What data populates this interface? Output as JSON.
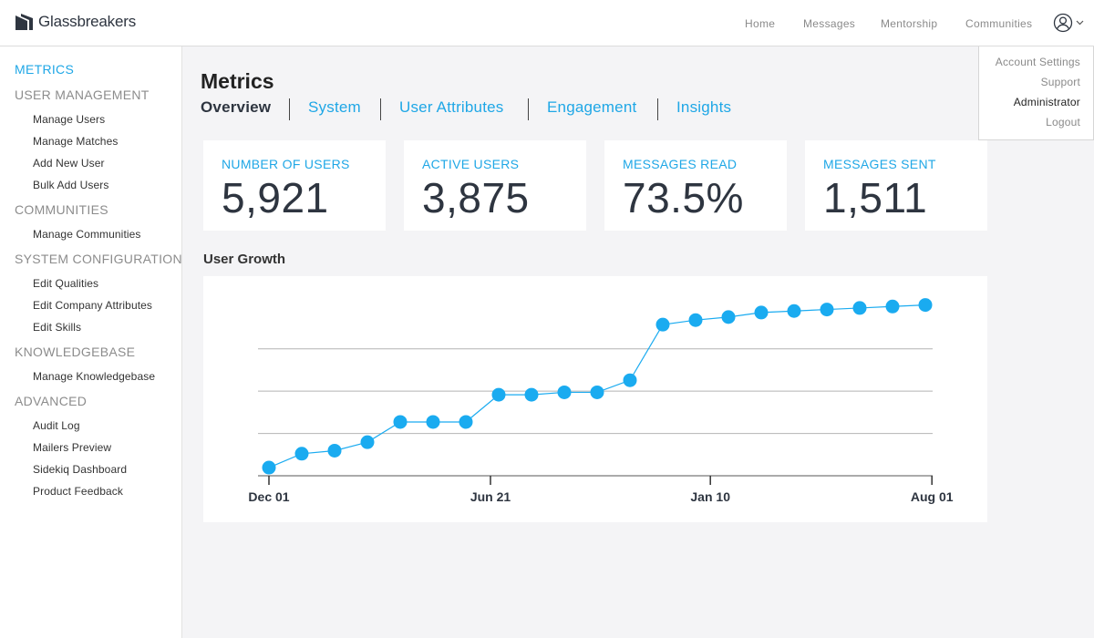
{
  "header": {
    "brand": "Glassbreakers",
    "nav": [
      "Home",
      "Messages",
      "Mentorship",
      "Communities"
    ]
  },
  "user_dropdown": {
    "items": [
      "Account Settings",
      "Support",
      "Administrator",
      "Logout"
    ],
    "active": "Administrator"
  },
  "sidebar": {
    "sections": [
      {
        "label": "METRICS",
        "active": true,
        "items": []
      },
      {
        "label": "USER MANAGEMENT",
        "active": false,
        "items": [
          "Manage Users",
          "Manage Matches",
          "Add New User",
          "Bulk Add Users"
        ]
      },
      {
        "label": "COMMUNITIES",
        "active": false,
        "items": [
          "Manage Communities"
        ]
      },
      {
        "label": "SYSTEM CONFIGURATION",
        "active": false,
        "items": [
          "Edit Qualities",
          "Edit Company Attributes",
          "Edit Skills"
        ]
      },
      {
        "label": "KNOWLEDGEBASE",
        "active": false,
        "items": [
          "Manage Knowledgebase"
        ]
      },
      {
        "label": "ADVANCED",
        "active": false,
        "items": [
          "Audit Log",
          "Mailers Preview",
          "Sidekiq Dashboard",
          "Product Feedback"
        ]
      }
    ]
  },
  "main": {
    "title": "Metrics",
    "tabs": [
      "Overview",
      "System",
      "User Attributes",
      "Engagement",
      "Insights"
    ],
    "active_tab": "Overview",
    "stats": [
      {
        "label": "NUMBER OF USERS",
        "value": "5,921"
      },
      {
        "label": "ACTIVE USERS",
        "value": "3,875"
      },
      {
        "label": "MESSAGES READ",
        "value": "73.5%"
      },
      {
        "label": "MESSAGES SENT",
        "value": "1,511"
      }
    ],
    "chart_title": "User Growth"
  },
  "colors": {
    "accent": "#1fa7e6",
    "point": "#1aabf0",
    "text_dark": "#2e3540"
  },
  "chart_data": {
    "type": "line",
    "title": "User Growth",
    "xlabel": "",
    "ylabel": "",
    "x_ticks": [
      "Dec 01",
      "Jun 21",
      "Jan 10",
      "Aug 01"
    ],
    "x_tick_positions": [
      0,
      6.75,
      13.45,
      20.2
    ],
    "y": [
      0.54,
      1.46,
      1.66,
      2.22,
      3.56,
      3.56,
      3.56,
      5.36,
      5.36,
      5.52,
      5.52,
      6.32,
      10.0,
      10.3,
      10.5,
      10.8,
      10.9,
      11.0,
      11.1,
      11.2,
      11.3
    ],
    "ylim": [
      0,
      12
    ],
    "gridlines_y": [
      2.8,
      5.6,
      8.4
    ],
    "grid": true,
    "legend": "none"
  }
}
